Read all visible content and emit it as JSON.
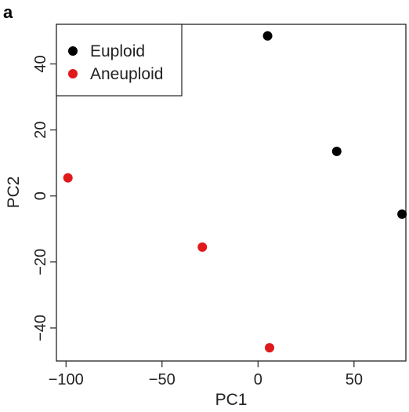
{
  "panel_label": "a",
  "chart_data": {
    "type": "scatter",
    "title": "",
    "xlabel": "PC1",
    "ylabel": "PC2",
    "xlim": [
      -105,
      77
    ],
    "ylim": [
      -50,
      52
    ],
    "x_ticks": [
      -100,
      -50,
      0,
      50
    ],
    "x_tick_labels": [
      "−100",
      "−50",
      "0",
      "50"
    ],
    "y_ticks": [
      -40,
      -20,
      0,
      20,
      40
    ],
    "y_tick_labels": [
      "−40",
      "−20",
      "0",
      "20",
      "40"
    ],
    "grid": false,
    "legend_position": "top-left",
    "series": [
      {
        "name": "Euploid",
        "color": "#000000",
        "points": [
          {
            "x": 5,
            "y": 48.5
          },
          {
            "x": 41,
            "y": 13.5
          },
          {
            "x": 75,
            "y": -5.5
          }
        ]
      },
      {
        "name": "Aneuploid",
        "color": "#e0191b",
        "points": [
          {
            "x": -99,
            "y": 5.5
          },
          {
            "x": -29,
            "y": -15.5
          },
          {
            "x": 6,
            "y": -46
          }
        ]
      }
    ]
  }
}
